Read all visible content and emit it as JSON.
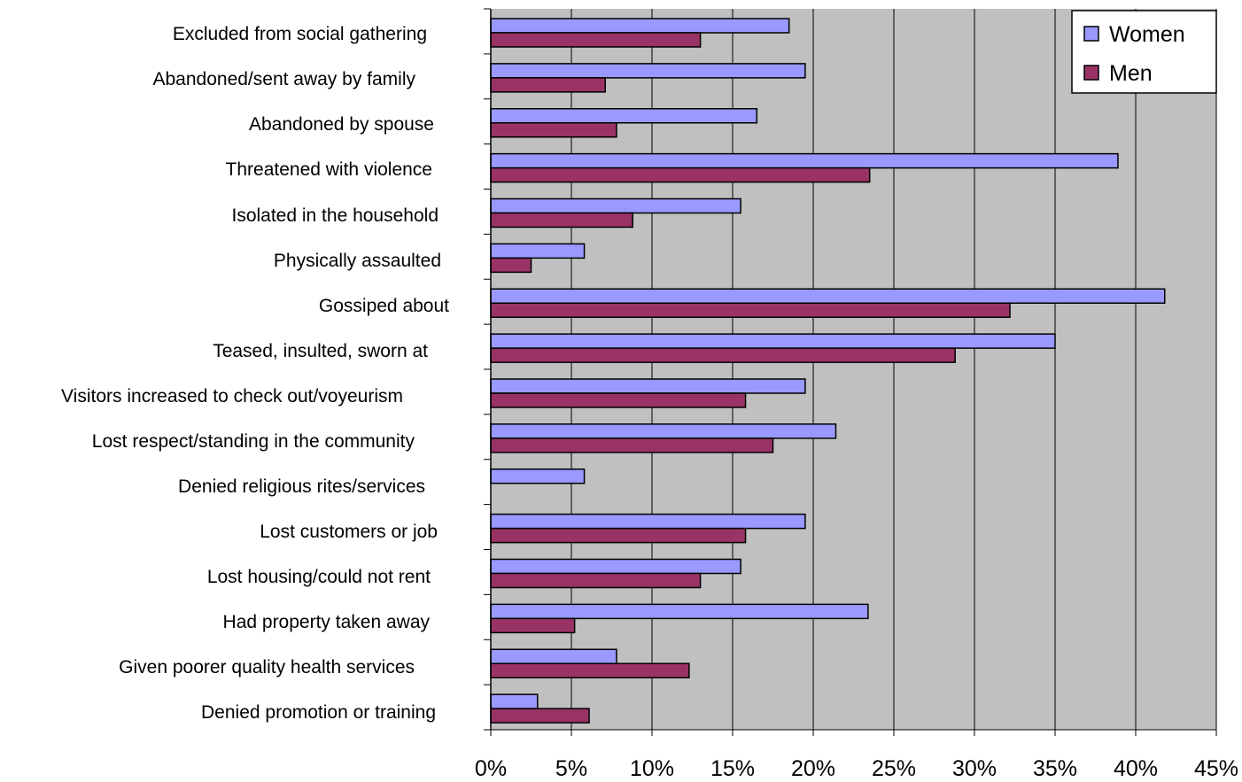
{
  "chart_data": {
    "type": "bar",
    "orientation": "horizontal",
    "categories": [
      "Excluded from social gathering",
      "Abandoned/sent away by family",
      "Abandoned by spouse",
      "Threatened with violence",
      "Isolated in the household",
      "Physically assaulted",
      "Gossiped about",
      "Teased, insulted, sworn at",
      "Visitors increased to check out/voyeurism",
      "Lost respect/standing in the community",
      "Denied religious rites/services",
      "Lost customers or job",
      "Lost housing/could not rent",
      "Had property taken away",
      "Given poorer quality health services",
      "Denied promotion or training"
    ],
    "series": [
      {
        "name": "Women",
        "color": "#9999ff",
        "values": [
          18.5,
          19.5,
          16.5,
          38.9,
          15.5,
          5.8,
          41.8,
          35.0,
          19.5,
          21.4,
          5.8,
          19.5,
          15.5,
          23.4,
          7.8,
          2.9
        ]
      },
      {
        "name": "Men",
        "color": "#993366",
        "values": [
          13.0,
          7.1,
          7.8,
          23.5,
          8.8,
          2.5,
          32.2,
          28.8,
          15.8,
          17.5,
          0,
          15.8,
          13.0,
          5.2,
          12.3,
          6.1
        ]
      }
    ],
    "x_ticks": [
      "0%",
      "5%",
      "10%",
      "15%",
      "20%",
      "25%",
      "30%",
      "35%",
      "40%",
      "45%"
    ],
    "xlim": [
      0,
      45
    ],
    "x_unit": "percent",
    "grid": "vertical",
    "plot_background": "#c0c0c0",
    "legend_position": "top-right",
    "title": "",
    "xlabel": "",
    "ylabel": ""
  }
}
